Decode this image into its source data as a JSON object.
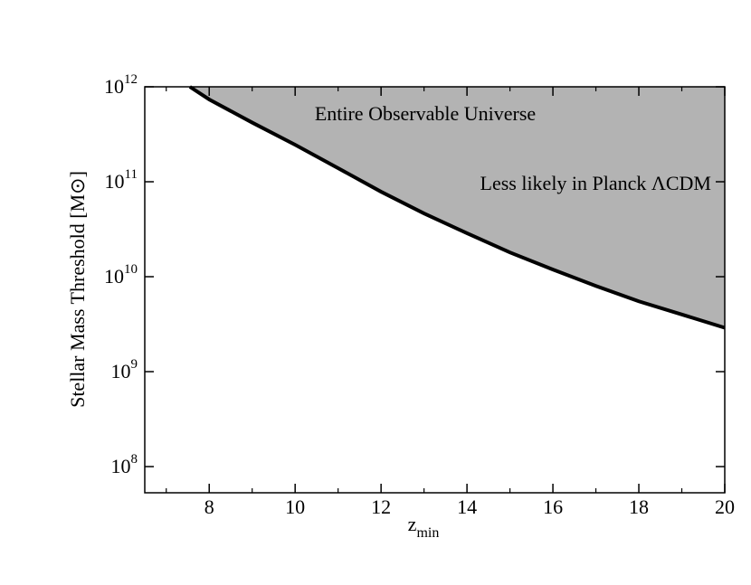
{
  "chart_data": {
    "type": "line",
    "x_label": "z",
    "x_label_sub": "min",
    "y_label": "Stellar Mass Threshold [M⊙]",
    "annotations": [
      "Entire Observable Universe",
      "Less likely in Planck ΛCDM"
    ],
    "x": [
      7.55,
      8,
      9,
      10,
      11,
      12,
      13,
      14,
      15,
      16,
      17,
      18,
      19,
      20
    ],
    "series": [
      {
        "color": "#000000",
        "fill": "#b3b3b3",
        "values": [
          1000000000000.0,
          736000000000.0,
          420000000000.0,
          245000000000.0,
          139000000000.0,
          78500000000.0,
          46400000000.0,
          28700000000.0,
          18000000000.0,
          11900000000.0,
          8000000000.0,
          5500000000.0,
          4000000000.0,
          2900000000.0
        ]
      }
    ],
    "xlim": [
      6.5,
      20
    ],
    "xticks": [
      8,
      10,
      12,
      14,
      16,
      18,
      20
    ],
    "xminor": [
      7,
      9,
      11,
      13,
      15,
      17,
      19
    ],
    "ylim": [
      53000000.0,
      1000000000000.0
    ],
    "ylog": true,
    "yticks": [
      {
        "value": 100000000.0,
        "label": "10",
        "exponent": "8"
      },
      {
        "value": 1000000000.0,
        "label": "10",
        "exponent": "9"
      },
      {
        "value": 10000000000.0,
        "label": "10",
        "exponent": "10"
      },
      {
        "value": 100000000000.0,
        "label": "10",
        "exponent": "11"
      },
      {
        "value": 1000000000000.0,
        "label": "10",
        "exponent": "12"
      }
    ]
  }
}
